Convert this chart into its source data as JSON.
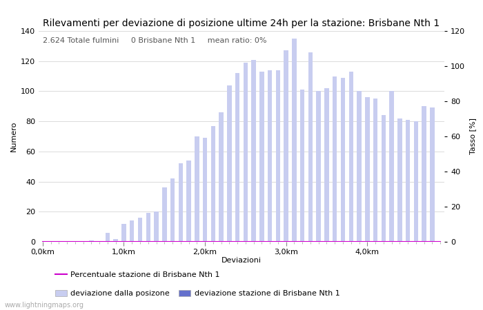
{
  "title": "Rilevamenti per deviazione di posizione ultime 24h per la stazione: Brisbane Nth 1",
  "subtitle": "2.624 Totale fulmini     0 Brisbane Nth 1     mean ratio: 0%",
  "xlabel": "Deviazioni",
  "ylabel_left": "Numero",
  "ylabel_right": "Tasso [%]",
  "watermark": "www.lightningmaps.org",
  "bar_color_light": "#c8cdf0",
  "bar_color_dark": "#6470cc",
  "line_color": "#cc00cc",
  "background_color": "#ffffff",
  "grid_color": "#cccccc",
  "ylim_left": [
    0,
    140
  ],
  "ylim_right": [
    0,
    120
  ],
  "n_bars": 50,
  "xtick_positions": [
    0,
    10,
    20,
    30,
    40
  ],
  "xtick_labels": [
    "0,0km",
    "1,0km",
    "2,0km",
    "3,0km",
    "4,0km"
  ],
  "ytick_left": [
    0,
    20,
    40,
    60,
    80,
    100,
    120,
    140
  ],
  "ytick_right": [
    0,
    20,
    40,
    60,
    80,
    100,
    120
  ],
  "bar_values": [
    0,
    0,
    0,
    0,
    0,
    0,
    1,
    0,
    6,
    2,
    12,
    14,
    16,
    19,
    20,
    36,
    42,
    52,
    54,
    70,
    69,
    77,
    86,
    104,
    112,
    119,
    121,
    113,
    114,
    114,
    127,
    135,
    101,
    126,
    100,
    102,
    110,
    109,
    113,
    100,
    96,
    95,
    84,
    100,
    82,
    81,
    80,
    90,
    89,
    0
  ],
  "station_bar_values": [
    0,
    0,
    0,
    0,
    0,
    0,
    0,
    0,
    0,
    0,
    0,
    0,
    0,
    0,
    0,
    0,
    0,
    0,
    0,
    0,
    0,
    0,
    0,
    0,
    0,
    0,
    0,
    0,
    0,
    0,
    0,
    0,
    0,
    0,
    0,
    0,
    0,
    0,
    0,
    0,
    0,
    0,
    0,
    0,
    0,
    0,
    0,
    0,
    0,
    0
  ],
  "percentage_values": [
    0,
    0,
    0,
    0,
    0,
    0,
    0,
    0,
    0,
    0,
    0,
    0,
    0,
    0,
    0,
    0,
    0,
    0,
    0,
    0,
    0,
    0,
    0,
    0,
    0,
    0,
    0,
    0,
    0,
    0,
    0,
    0,
    0,
    0,
    0,
    0,
    0,
    0,
    0,
    0,
    0,
    0,
    0,
    0,
    0,
    0,
    0,
    0,
    0,
    0
  ],
  "legend_light_label": "deviazione dalla posizone",
  "legend_dark_label": "deviazione stazione di Brisbane Nth 1",
  "legend_line_label": "Percentuale stazione di Brisbane Nth 1",
  "title_fontsize": 10,
  "subtitle_fontsize": 8,
  "axis_fontsize": 8,
  "tick_fontsize": 8,
  "legend_fontsize": 8
}
